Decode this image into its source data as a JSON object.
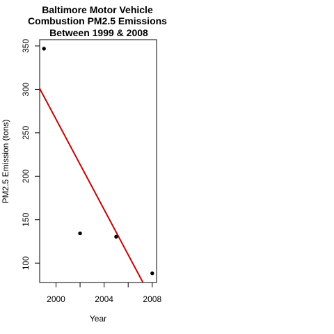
{
  "chart_data": {
    "type": "scatter",
    "title_lines": [
      "Baltimore Motor Vehicle",
      "Combustion PM2.5 Emissions",
      "Between 1999 & 2008"
    ],
    "xlabel": "Year",
    "ylabel": "PM2.5 Emission (tons)",
    "x_ticks": [
      2000,
      2004,
      2008
    ],
    "x_tick_labels": [
      "2000",
      "2004",
      "2008"
    ],
    "y_ticks": [
      100,
      150,
      200,
      250,
      300,
      350
    ],
    "y_tick_labels": [
      "100",
      "150",
      "200",
      "250",
      "300",
      "350"
    ],
    "xlim": [
      1998.64,
      2008.36
    ],
    "ylim": [
      77.7,
      357.2
    ],
    "grid": false,
    "series": [
      {
        "x": [
          1999,
          2002,
          2005,
          2008
        ],
        "y": [
          346.8,
          134.3,
          130.4,
          88.3
        ],
        "color": "#000000"
      }
    ],
    "trend_line": {
      "x": [
        1998.64,
        2007.23
      ],
      "y": [
        301.0,
        77.7
      ],
      "color": "#cc0000"
    }
  }
}
